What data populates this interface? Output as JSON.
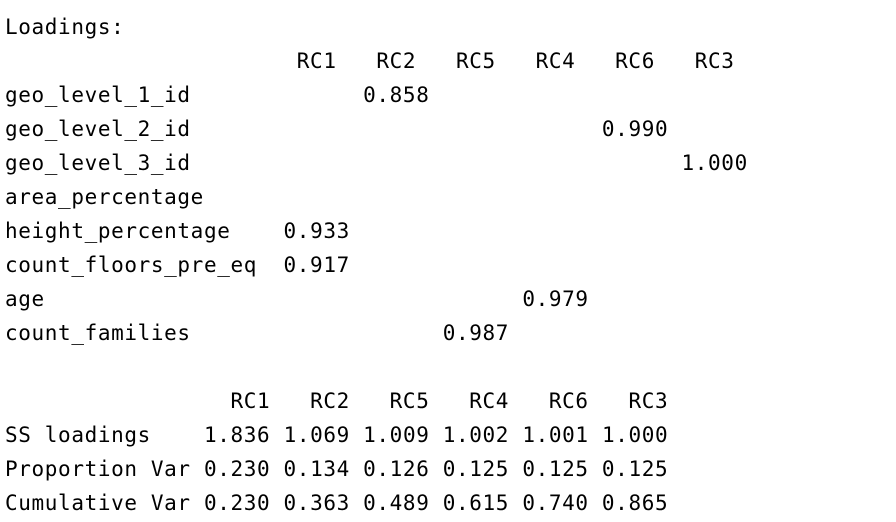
{
  "loadings": {
    "title": "Loadings:",
    "header": [
      "RC1",
      "RC2",
      "RC5",
      "RC4",
      "RC6",
      "RC3"
    ],
    "rows": [
      {
        "name": "geo_level_1_id",
        "values": [
          "",
          "0.858",
          "",
          "",
          "",
          ""
        ]
      },
      {
        "name": "geo_level_2_id",
        "values": [
          "",
          "",
          "",
          "",
          "0.990",
          ""
        ]
      },
      {
        "name": "geo_level_3_id",
        "values": [
          "",
          "",
          "",
          "",
          "",
          "1.000"
        ]
      },
      {
        "name": "area_percentage",
        "values": [
          "",
          "",
          "",
          "",
          "",
          ""
        ]
      },
      {
        "name": "height_percentage",
        "values": [
          "0.933",
          "",
          "",
          "",
          "",
          ""
        ]
      },
      {
        "name": "count_floors_pre_eq",
        "values": [
          "0.917",
          "",
          "",
          "",
          "",
          ""
        ]
      },
      {
        "name": "age",
        "values": [
          "",
          "",
          "",
          "0.979",
          "",
          ""
        ]
      },
      {
        "name": "count_families",
        "values": [
          "",
          "",
          "0.987",
          "",
          "",
          ""
        ]
      }
    ]
  },
  "variance": {
    "header": [
      "RC1",
      "RC2",
      "RC5",
      "RC4",
      "RC6",
      "RC3"
    ],
    "rows": [
      {
        "name": "SS loadings",
        "values": [
          "1.836",
          "1.069",
          "1.009",
          "1.002",
          "1.001",
          "1.000"
        ]
      },
      {
        "name": "Proportion Var",
        "values": [
          "0.230",
          "0.134",
          "0.126",
          "0.125",
          "0.125",
          "0.125"
        ]
      },
      {
        "name": "Cumulative Var",
        "values": [
          "0.230",
          "0.363",
          "0.489",
          "0.615",
          "0.740",
          "0.865"
        ]
      }
    ]
  }
}
